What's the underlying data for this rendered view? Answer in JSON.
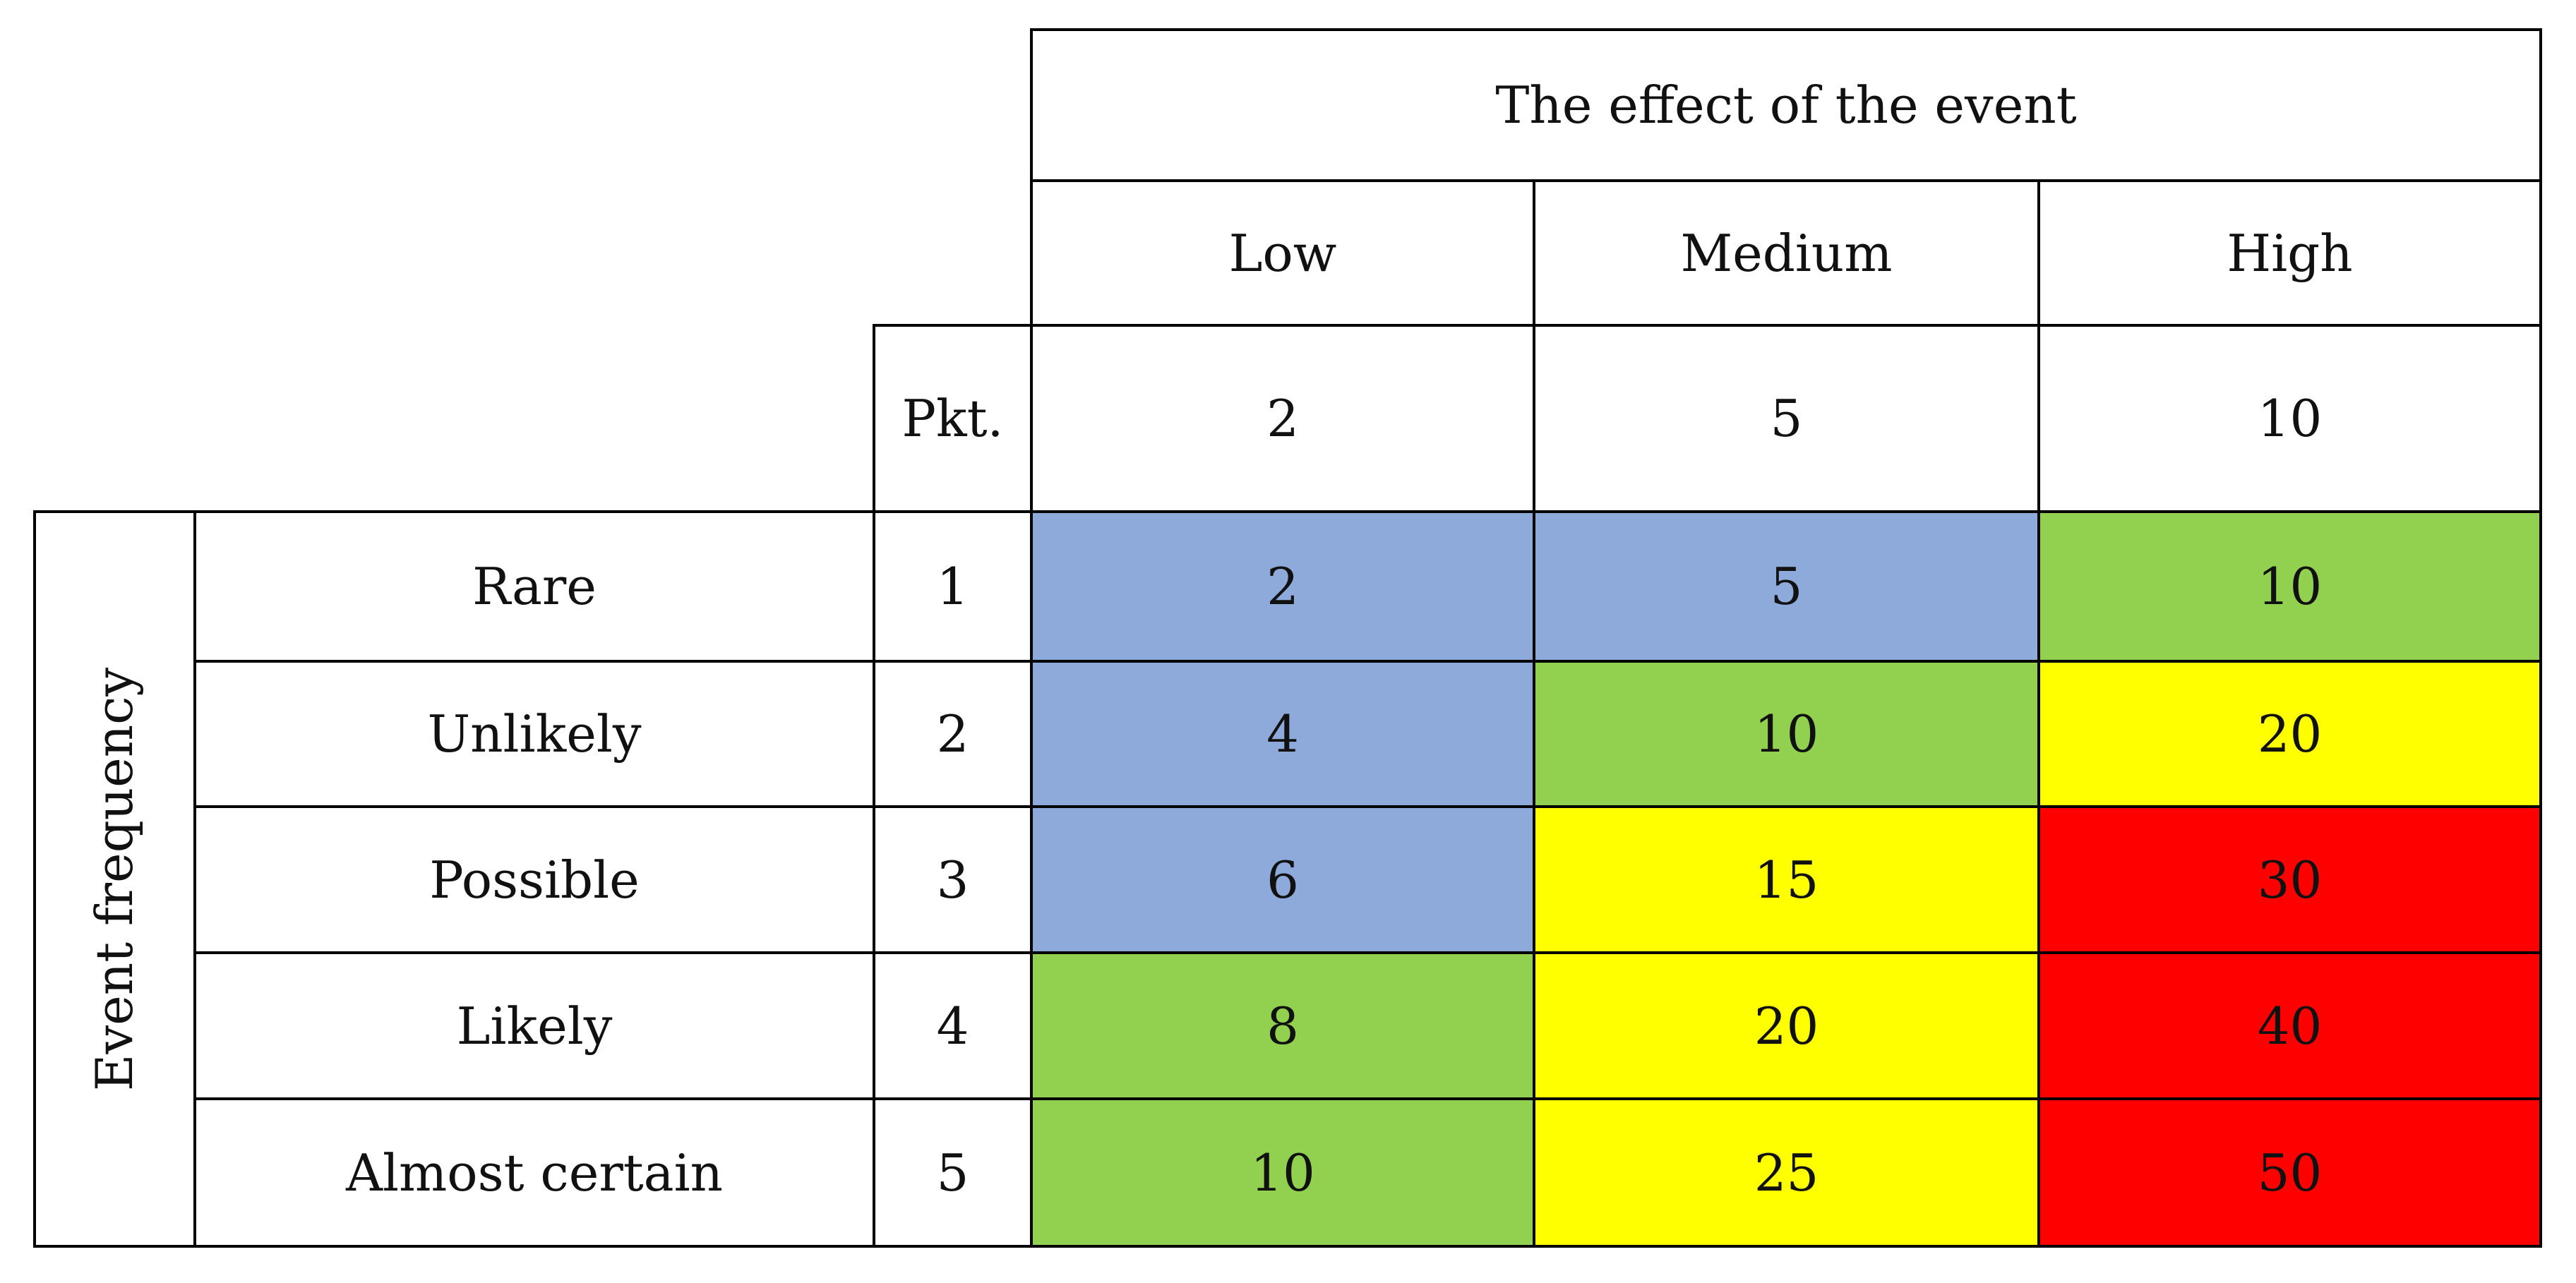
{
  "title": "The effect of the event",
  "effect_levels": [
    "Low",
    "Medium",
    "High"
  ],
  "points_label": "Pkt.",
  "effect_points": [
    "2",
    "5",
    "10"
  ],
  "frequency_axis_label": "Event frequency",
  "frequency_levels": [
    "Rare",
    "Unlikely",
    "Possible",
    "Likely",
    "Almost certain"
  ],
  "frequency_points": [
    "1",
    "2",
    "3",
    "4",
    "5"
  ],
  "scores": [
    [
      "2",
      "5",
      "10"
    ],
    [
      "4",
      "10",
      "20"
    ],
    [
      "6",
      "15",
      "30"
    ],
    [
      "8",
      "20",
      "40"
    ],
    [
      "10",
      "25",
      "50"
    ]
  ],
  "risk_colors": {
    "blue": "#8eaadb",
    "green": "#92d050",
    "yellow": "#ffff00",
    "red": "#ff0000"
  },
  "cell_color_keys": [
    [
      "blue",
      "blue",
      "green"
    ],
    [
      "blue",
      "green",
      "yellow"
    ],
    [
      "blue",
      "yellow",
      "red"
    ],
    [
      "green",
      "yellow",
      "red"
    ],
    [
      "green",
      "yellow",
      "red"
    ]
  ]
}
